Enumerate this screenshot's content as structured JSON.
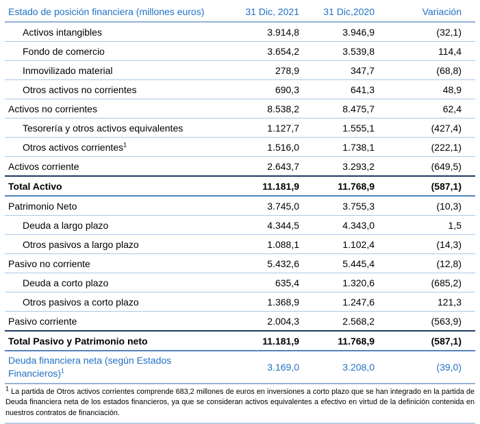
{
  "colors": {
    "accent_blue_text": "#1F70C4",
    "header_border_blue": "#95B3D7",
    "row_divider_light_blue": "#A9C7E8",
    "total_top_border_dark_navy": "#1F3864",
    "total_bottom_border_blue": "#4F81BD",
    "body_text": "#000000"
  },
  "table": {
    "header": {
      "title": "Estado de posición financiera (millones euros)",
      "columns": [
        "31 Dic, 2021",
        "31 Dic,2020",
        "Variación"
      ]
    },
    "rows": [
      {
        "label": "Activos intangibles",
        "sup": "",
        "y2021": "3.914,8",
        "y2020": "3.946,9",
        "variation": "(32,1)",
        "style": "item"
      },
      {
        "label": "Fondo de comercio",
        "sup": "",
        "y2021": "3.654,2",
        "y2020": "3.539,8",
        "variation": "114,4",
        "style": "item"
      },
      {
        "label": "Inmovilizado material",
        "sup": "",
        "y2021": "278,9",
        "y2020": "347,7",
        "variation": "(68,8)",
        "style": "item"
      },
      {
        "label": "Otros activos no corrientes",
        "sup": "",
        "y2021": "690,3",
        "y2020": "641,3",
        "variation": "48,9",
        "style": "item"
      },
      {
        "label": "Activos no corrientes",
        "sup": "",
        "y2021": "8.538,2",
        "y2020": "8.475,7",
        "variation": "62,4",
        "style": "group"
      },
      {
        "label": "Tesorería y otros activos equivalentes",
        "sup": "",
        "y2021": "1.127,7",
        "y2020": "1.555,1",
        "variation": "(427,4)",
        "style": "item"
      },
      {
        "label": "Otros activos corrientes",
        "sup": "1",
        "y2021": "1.516,0",
        "y2020": "1.738,1",
        "variation": "(222,1)",
        "style": "item"
      },
      {
        "label": "Activos corriente",
        "sup": "",
        "y2021": "2.643,7",
        "y2020": "3.293,2",
        "variation": "(649,5)",
        "style": "group"
      },
      {
        "label": "Total Activo",
        "sup": "",
        "y2021": "11.181,9",
        "y2020": "11.768,9",
        "variation": "(587,1)",
        "style": "total"
      },
      {
        "label": "Patrimonio Neto",
        "sup": "",
        "y2021": "3.745,0",
        "y2020": "3.755,3",
        "variation": "(10,3)",
        "style": "group"
      },
      {
        "label": "Deuda a largo plazo",
        "sup": "",
        "y2021": "4.344,5",
        "y2020": "4.343,0",
        "variation": "1,5",
        "style": "item"
      },
      {
        "label": "Otros pasivos a largo plazo",
        "sup": "",
        "y2021": "1.088,1",
        "y2020": "1.102,4",
        "variation": "(14,3)",
        "style": "item"
      },
      {
        "label": "Pasivo no corriente",
        "sup": "",
        "y2021": "5.432,6",
        "y2020": "5.445,4",
        "variation": "(12,8)",
        "style": "group"
      },
      {
        "label": "Deuda a corto plazo",
        "sup": "",
        "y2021": "635,4",
        "y2020": "1.320,6",
        "variation": "(685,2)",
        "style": "item"
      },
      {
        "label": "Otros pasivos a corto plazo",
        "sup": "",
        "y2021": "1.368,9",
        "y2020": "1.247,6",
        "variation": "121,3",
        "style": "item"
      },
      {
        "label": "Pasivo corriente",
        "sup": "",
        "y2021": "2.004,3",
        "y2020": "2.568,2",
        "variation": "(563,9)",
        "style": "group"
      },
      {
        "label": "Total Pasivo y Patrimonio neto",
        "sup": "",
        "y2021": "11.181,9",
        "y2020": "11.768,9",
        "variation": "(587,1)",
        "style": "total"
      },
      {
        "label": "Deuda financiera neta (según Estados Financieros)",
        "sup": "1",
        "y2021": "3.169,0",
        "y2020": "3.208,0",
        "variation": "(39,0)",
        "style": "net-debt"
      }
    ]
  },
  "footnote": {
    "marker": "1",
    "text": "La partida de Otros activos corrientes comprende 683,2 millones de euros en inversiones a corto plazo que se han integrado en la partida de Deuda financiera neta de los estados financieros, ya que se consideran activos equivalentes a efectivo en virtud de la definición contenida en nuestros contratos de financiación."
  }
}
